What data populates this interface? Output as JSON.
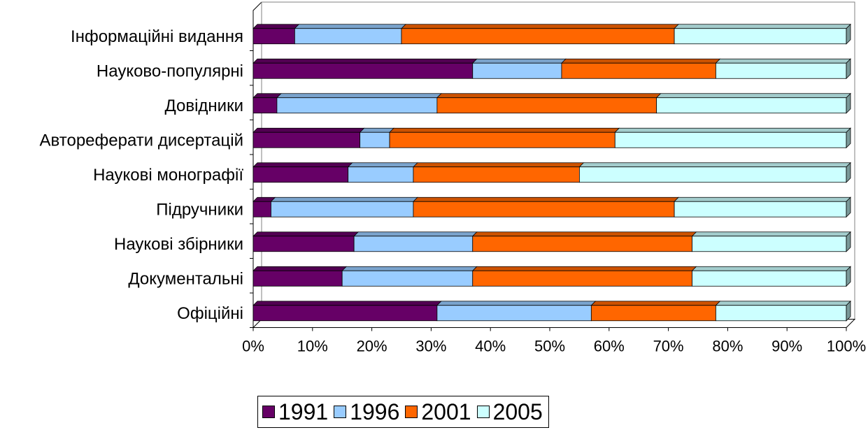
{
  "chart_data": {
    "type": "bar",
    "orientation": "horizontal",
    "stacked": "100%",
    "categories": [
      "Інформаційні видання",
      "Науково-популярні",
      "Довідники",
      "Автореферати дисертацій",
      "Наукові монографії",
      "Підручники",
      "Наукові збірники",
      "Документальні",
      "Офіційні"
    ],
    "series": [
      {
        "name": "1991",
        "color": "#660066",
        "values": [
          7,
          37,
          4,
          18,
          16,
          3,
          17,
          15,
          31
        ]
      },
      {
        "name": "1996",
        "color": "#99CCFF",
        "values": [
          18,
          15,
          27,
          5,
          11,
          24,
          20,
          22,
          26
        ]
      },
      {
        "name": "2001",
        "color": "#FF6600",
        "values": [
          46,
          26,
          37,
          38,
          28,
          44,
          37,
          37,
          21
        ]
      },
      {
        "name": "2005",
        "color": "#CCFFFF",
        "values": [
          29,
          22,
          32,
          39,
          45,
          29,
          26,
          26,
          22
        ]
      }
    ],
    "x_ticks": [
      "0%",
      "10%",
      "20%",
      "30%",
      "40%",
      "50%",
      "60%",
      "70%",
      "80%",
      "90%",
      "100%"
    ],
    "xlim": [
      0,
      100
    ],
    "legend_position": "bottom",
    "grid": false
  }
}
